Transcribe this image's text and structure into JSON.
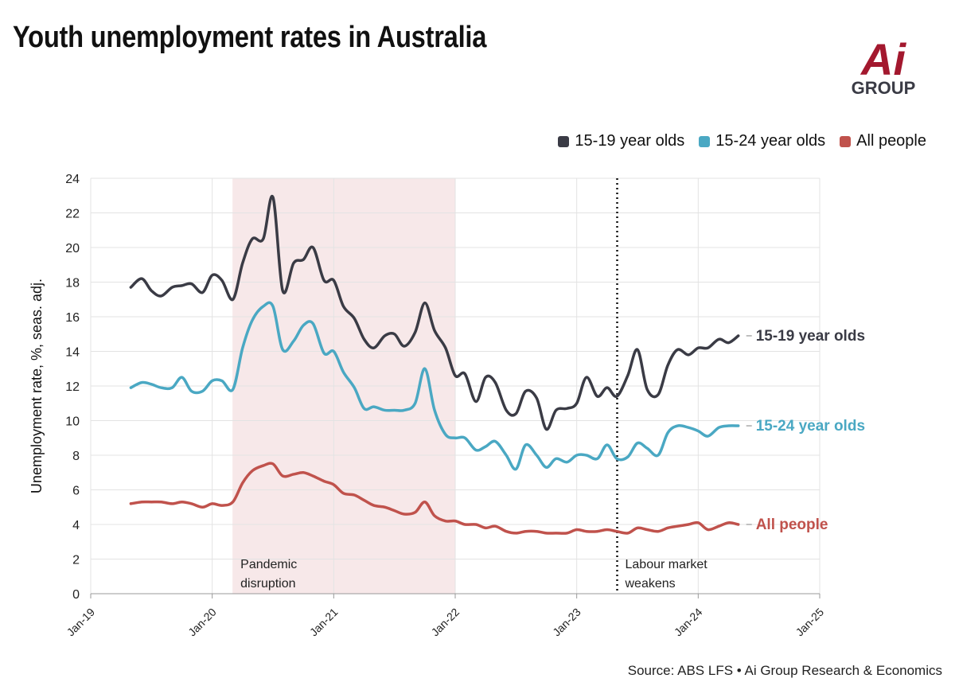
{
  "header": {
    "title": "Youth unemployment rates in Australia",
    "logo_main": "Ai",
    "logo_sub": "GROUP"
  },
  "colors": {
    "teens": "#3a3b45",
    "youth": "#4aa8c3",
    "all": "#c0524c",
    "shade": "#f7e8e9",
    "grid": "#e3e3e3",
    "brand": "#a3182e"
  },
  "chart_data": {
    "type": "line",
    "title": "Youth unemployment rates in Australia",
    "ylabel": "Unemployment rate, %, seas. adj.",
    "xlabel": "",
    "ylim": [
      0,
      24
    ],
    "yticks": [
      0,
      2,
      4,
      6,
      8,
      10,
      12,
      14,
      16,
      18,
      20,
      22,
      24
    ],
    "xlim": [
      2019.0,
      2025.0
    ],
    "xticks": [
      {
        "label": "Jan-19",
        "x": 2019.0
      },
      {
        "label": "Jan-20",
        "x": 2020.0
      },
      {
        "label": "Jan-21",
        "x": 2021.0
      },
      {
        "label": "Jan-22",
        "x": 2022.0
      },
      {
        "label": "Jan-23",
        "x": 2023.0
      },
      {
        "label": "Jan-24",
        "x": 2024.0
      },
      {
        "label": "Jan-25",
        "x": 2025.0
      }
    ],
    "legend": [
      "15-19 year olds",
      "15-24 year olds",
      "All people"
    ],
    "legend_position": "top-right",
    "annotations": [
      {
        "type": "band",
        "x_start": 2020.167,
        "x_end": 2022.0,
        "label": "Pandemic\ndisruption"
      },
      {
        "type": "vline",
        "x": 2023.333,
        "style": "dotted",
        "label": "Labour market\nweakens"
      }
    ],
    "series": [
      {
        "name": "15-19 year olds",
        "end_label": "15-19 year olds",
        "color_key": "teens",
        "x": [
          2019.33,
          2019.42,
          2019.5,
          2019.58,
          2019.67,
          2019.75,
          2019.83,
          2019.92,
          2020.0,
          2020.08,
          2020.17,
          2020.25,
          2020.33,
          2020.42,
          2020.5,
          2020.58,
          2020.67,
          2020.75,
          2020.83,
          2020.92,
          2021.0,
          2021.08,
          2021.17,
          2021.25,
          2021.33,
          2021.42,
          2021.5,
          2021.58,
          2021.67,
          2021.75,
          2021.83,
          2021.92,
          2022.0,
          2022.08,
          2022.17,
          2022.25,
          2022.33,
          2022.42,
          2022.5,
          2022.58,
          2022.67,
          2022.75,
          2022.83,
          2022.92,
          2023.0,
          2023.08,
          2023.17,
          2023.25,
          2023.33,
          2023.42,
          2023.5,
          2023.58,
          2023.67,
          2023.75,
          2023.83,
          2023.92,
          2024.0,
          2024.08,
          2024.17,
          2024.25,
          2024.33
        ],
        "values": [
          17.7,
          18.2,
          17.5,
          17.2,
          17.7,
          17.8,
          17.9,
          17.4,
          18.4,
          18.1,
          17.0,
          19.1,
          20.5,
          20.5,
          22.9,
          17.5,
          19.1,
          19.3,
          20.0,
          18.1,
          18.1,
          16.6,
          15.9,
          14.7,
          14.2,
          14.9,
          15.0,
          14.3,
          15.1,
          16.8,
          15.2,
          14.2,
          12.6,
          12.7,
          11.1,
          12.5,
          12.2,
          10.6,
          10.4,
          11.7,
          11.3,
          9.5,
          10.6,
          10.7,
          11.0,
          12.5,
          11.4,
          11.9,
          11.4,
          12.6,
          14.1,
          11.8,
          11.5,
          13.2,
          14.1,
          13.8,
          14.2,
          14.2,
          14.7,
          14.5,
          14.9
        ]
      },
      {
        "name": "15-24 year olds",
        "end_label": "15-24 year olds",
        "color_key": "youth",
        "x": [
          2019.33,
          2019.42,
          2019.5,
          2019.58,
          2019.67,
          2019.75,
          2019.83,
          2019.92,
          2020.0,
          2020.08,
          2020.17,
          2020.25,
          2020.33,
          2020.42,
          2020.5,
          2020.58,
          2020.67,
          2020.75,
          2020.83,
          2020.92,
          2021.0,
          2021.08,
          2021.17,
          2021.25,
          2021.33,
          2021.42,
          2021.5,
          2021.58,
          2021.67,
          2021.75,
          2021.83,
          2021.92,
          2022.0,
          2022.08,
          2022.17,
          2022.25,
          2022.33,
          2022.42,
          2022.5,
          2022.58,
          2022.67,
          2022.75,
          2022.83,
          2022.92,
          2023.0,
          2023.08,
          2023.17,
          2023.25,
          2023.33,
          2023.42,
          2023.5,
          2023.58,
          2023.67,
          2023.75,
          2023.83,
          2023.92,
          2024.0,
          2024.08,
          2024.17,
          2024.25,
          2024.33
        ],
        "values": [
          11.9,
          12.2,
          12.1,
          11.9,
          11.9,
          12.5,
          11.7,
          11.7,
          12.3,
          12.3,
          11.8,
          14.2,
          15.8,
          16.6,
          16.6,
          14.1,
          14.6,
          15.5,
          15.6,
          13.9,
          14.0,
          12.8,
          11.9,
          10.7,
          10.8,
          10.6,
          10.6,
          10.6,
          11.0,
          13.0,
          10.6,
          9.2,
          9.0,
          9.0,
          8.3,
          8.5,
          8.8,
          8.0,
          7.2,
          8.6,
          8.0,
          7.3,
          7.8,
          7.6,
          8.0,
          8.0,
          7.8,
          8.6,
          7.8,
          7.9,
          8.7,
          8.4,
          8.0,
          9.3,
          9.7,
          9.6,
          9.4,
          9.1,
          9.6,
          9.7,
          9.7
        ]
      },
      {
        "name": "All people",
        "end_label": "All people",
        "color_key": "all",
        "x": [
          2019.33,
          2019.42,
          2019.5,
          2019.58,
          2019.67,
          2019.75,
          2019.83,
          2019.92,
          2020.0,
          2020.08,
          2020.17,
          2020.25,
          2020.33,
          2020.42,
          2020.5,
          2020.58,
          2020.67,
          2020.75,
          2020.83,
          2020.92,
          2021.0,
          2021.08,
          2021.17,
          2021.25,
          2021.33,
          2021.42,
          2021.5,
          2021.58,
          2021.67,
          2021.75,
          2021.83,
          2021.92,
          2022.0,
          2022.08,
          2022.17,
          2022.25,
          2022.33,
          2022.42,
          2022.5,
          2022.58,
          2022.67,
          2022.75,
          2022.83,
          2022.92,
          2023.0,
          2023.08,
          2023.17,
          2023.25,
          2023.33,
          2023.42,
          2023.5,
          2023.58,
          2023.67,
          2023.75,
          2023.83,
          2023.92,
          2024.0,
          2024.08,
          2024.17,
          2024.25,
          2024.33
        ],
        "values": [
          5.2,
          5.3,
          5.3,
          5.3,
          5.2,
          5.3,
          5.2,
          5.0,
          5.2,
          5.1,
          5.3,
          6.4,
          7.1,
          7.4,
          7.5,
          6.8,
          6.9,
          7.0,
          6.8,
          6.5,
          6.3,
          5.8,
          5.7,
          5.4,
          5.1,
          5.0,
          4.8,
          4.6,
          4.7,
          5.3,
          4.5,
          4.2,
          4.2,
          4.0,
          4.0,
          3.8,
          3.9,
          3.6,
          3.5,
          3.6,
          3.6,
          3.5,
          3.5,
          3.5,
          3.7,
          3.6,
          3.6,
          3.7,
          3.6,
          3.5,
          3.8,
          3.7,
          3.6,
          3.8,
          3.9,
          4.0,
          4.1,
          3.7,
          3.9,
          4.1,
          4.0
        ]
      }
    ]
  },
  "footer": {
    "source": "Source: ABS LFS • Ai Group Research & Economics"
  }
}
